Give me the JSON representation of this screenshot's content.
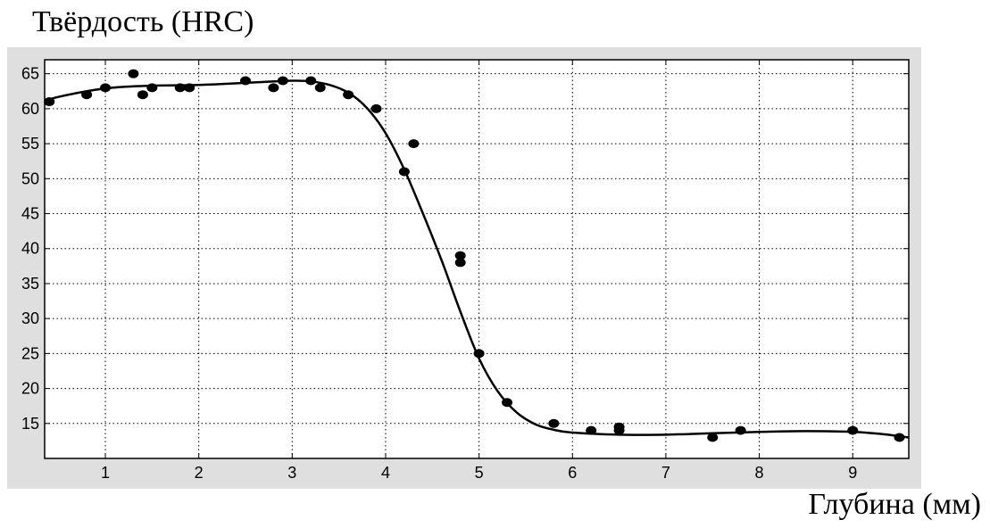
{
  "chart_data": {
    "type": "scatter",
    "ylabel": "Твёрдость (HRC)",
    "xlabel": "Глубина (мм)",
    "title": "",
    "xlim": [
      0.35,
      9.6
    ],
    "ylim": [
      10,
      67
    ],
    "xticks": [
      1,
      2,
      3,
      4,
      5,
      6,
      7,
      8,
      9
    ],
    "yticks": [
      15,
      20,
      25,
      30,
      35,
      40,
      45,
      50,
      55,
      60,
      65
    ],
    "grid": true,
    "grid_style": "dotted",
    "colors": {
      "marker": "#000000",
      "curve": "#000000",
      "frame_bg": "#dfdfdf",
      "axes_bg": "#ffffff"
    },
    "series": [
      {
        "kind": "points",
        "x": [
          0.4,
          0.8,
          1.0,
          1.3,
          1.4,
          1.5,
          1.8,
          1.9,
          2.5,
          2.8,
          2.9,
          3.2,
          3.3,
          3.6,
          3.9,
          4.2,
          4.3,
          4.8,
          4.8,
          5.0,
          5.3,
          5.8,
          6.2,
          6.5,
          6.5,
          7.5,
          7.8,
          9.0,
          9.5
        ],
        "y": [
          61,
          62,
          63,
          65,
          62,
          63,
          63,
          63,
          64,
          63,
          64,
          64,
          63,
          62,
          60,
          51,
          55,
          39,
          38,
          25,
          18,
          15,
          14,
          14.5,
          14,
          13,
          14,
          14,
          13
        ]
      },
      {
        "kind": "fit-curve",
        "x": [
          0.35,
          0.5,
          1.0,
          1.5,
          2.0,
          2.5,
          3.0,
          3.2,
          3.4,
          3.6,
          3.8,
          4.0,
          4.2,
          4.4,
          4.6,
          4.8,
          5.0,
          5.2,
          5.4,
          5.6,
          5.8,
          6.0,
          6.5,
          7.0,
          7.5,
          8.0,
          8.5,
          9.0,
          9.3,
          9.6
        ],
        "y": [
          61,
          61.7,
          62.9,
          63.3,
          63.4,
          63.7,
          64.0,
          63.9,
          63.4,
          62.3,
          60.1,
          56.5,
          51.3,
          45.0,
          38.3,
          31.0,
          24.3,
          19.6,
          16.6,
          14.9,
          14.1,
          13.7,
          13.4,
          13.4,
          13.6,
          13.8,
          13.9,
          13.8,
          13.5,
          13.0
        ]
      }
    ]
  }
}
